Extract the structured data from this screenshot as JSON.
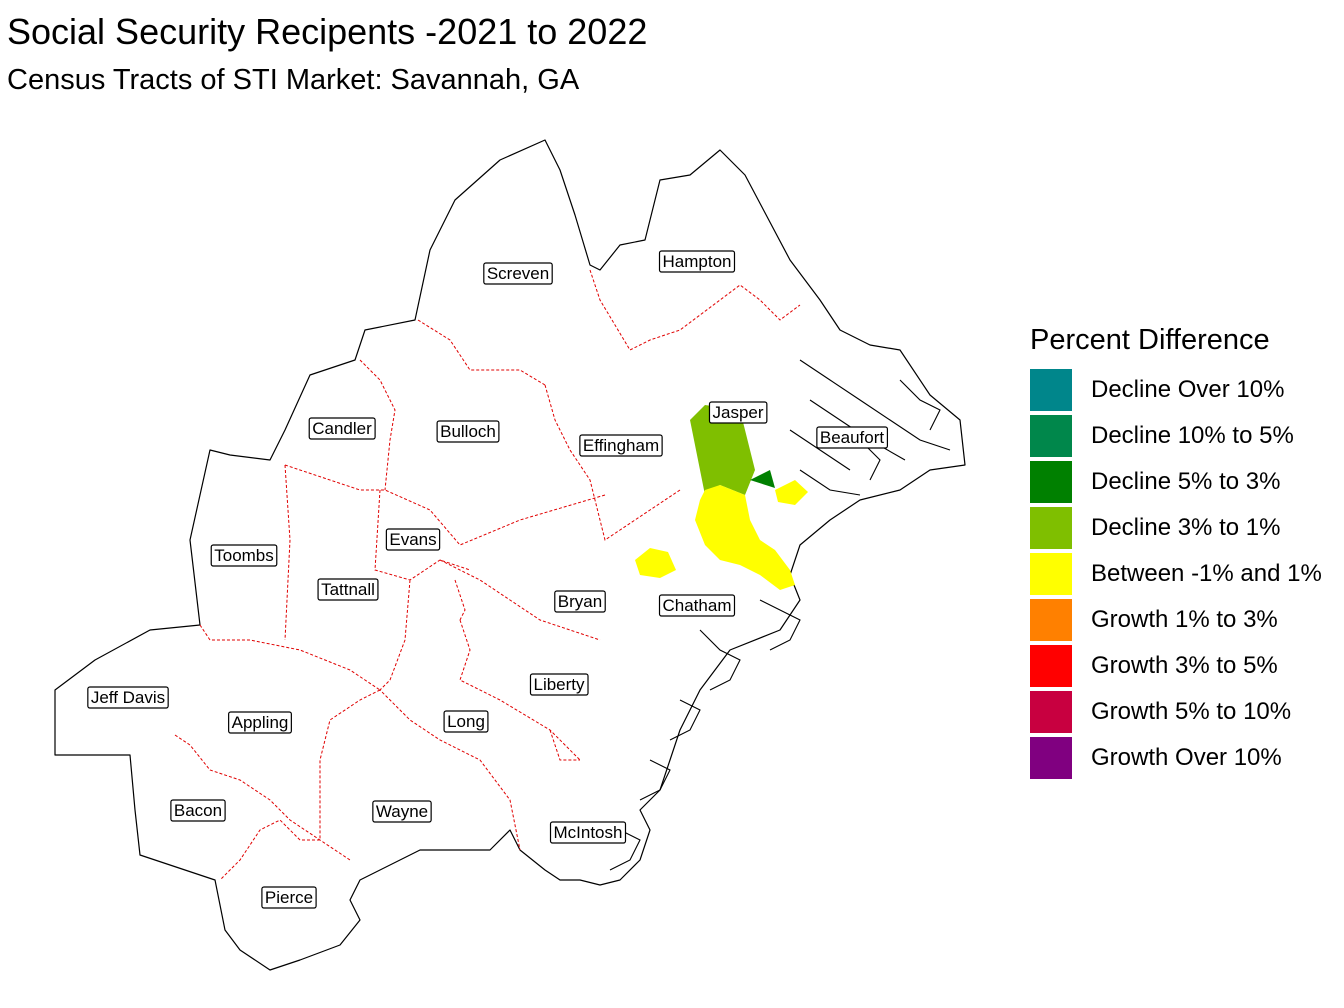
{
  "title": "Social Security Recipents -2021 to 2022",
  "subtitle": "Census Tracts of STI Market: Savannah, GA",
  "counties": [
    "Screven",
    "Hampton",
    "Jasper",
    "Beaufort",
    "Candler",
    "Bulloch",
    "Effingham",
    "Evans",
    "Toombs",
    "Tattnall",
    "Bryan",
    "Chatham",
    "Jeff Davis",
    "Appling",
    "Liberty",
    "Long",
    "Bacon",
    "Wayne",
    "McIntosh",
    "Pierce"
  ],
  "legend": {
    "title": "Percent Difference",
    "items": [
      {
        "label": "Decline Over 10%",
        "color": "#00868B"
      },
      {
        "label": "Decline 10% to 5%",
        "color": "#00874B"
      },
      {
        "label": "Decline 5% to 3%",
        "color": "#008000"
      },
      {
        "label": "Decline 3% to 1%",
        "color": "#7FBF00"
      },
      {
        "label": "Between -1% and 1%",
        "color": "#FFFF00"
      },
      {
        "label": "Growth 1% to 3%",
        "color": "#FF8000"
      },
      {
        "label": "Growth 3% to 5%",
        "color": "#FF0000"
      },
      {
        "label": "Growth 5% to 10%",
        "color": "#C80040"
      },
      {
        "label": "Growth Over 10%",
        "color": "#800080"
      }
    ]
  }
}
